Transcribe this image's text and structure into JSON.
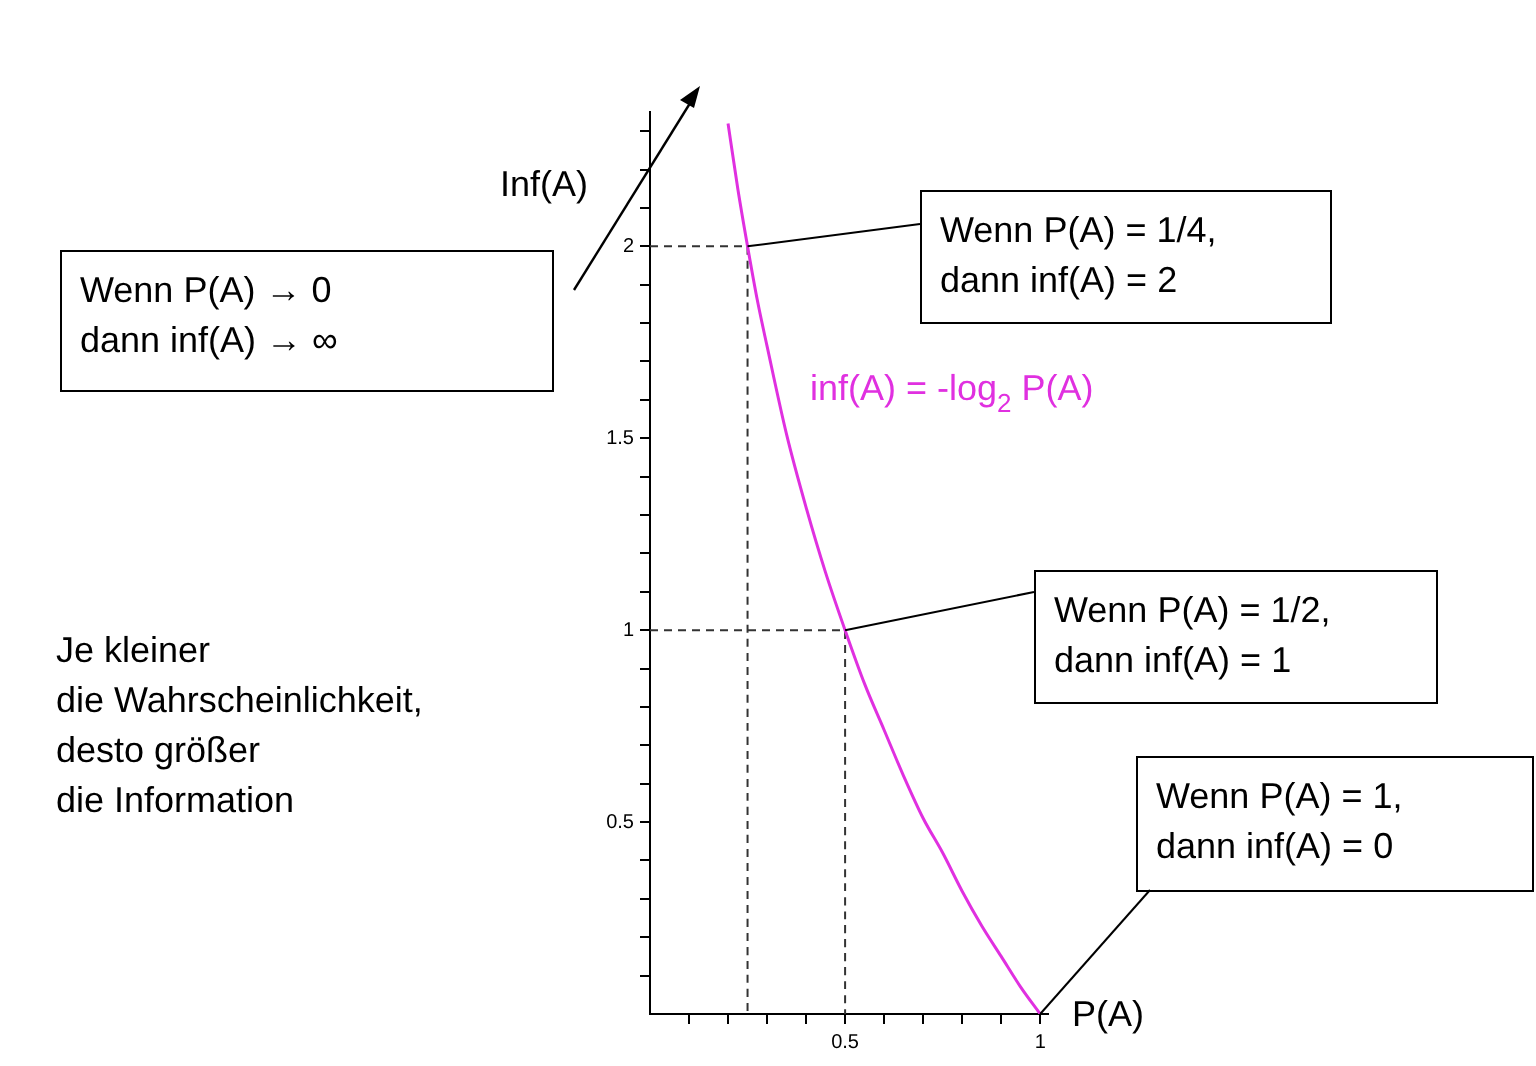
{
  "chart_data": {
    "type": "line",
    "xlabel": "P(A)",
    "ylabel": "Inf(A)",
    "xlim": [
      0,
      1.02
    ],
    "ylim": [
      0,
      2.35
    ],
    "xticks": [
      {
        "value": 0.1,
        "label": null
      },
      {
        "value": 0.2,
        "label": null
      },
      {
        "value": 0.3,
        "label": null
      },
      {
        "value": 0.4,
        "label": null
      },
      0.5,
      {
        "value": 0.6,
        "label": null
      },
      {
        "value": 0.7,
        "label": null
      },
      {
        "value": 0.8,
        "label": null
      },
      {
        "value": 0.9,
        "label": null
      },
      1
    ],
    "yticks": [
      {
        "value": 0.1,
        "label": null
      },
      {
        "value": 0.2,
        "label": null
      },
      {
        "value": 0.3,
        "label": null
      },
      {
        "value": 0.4,
        "label": null
      },
      0.5,
      {
        "value": 0.6,
        "label": null
      },
      {
        "value": 0.7,
        "label": null
      },
      {
        "value": 0.8,
        "label": null
      },
      {
        "value": 0.9,
        "label": null
      },
      1,
      {
        "value": 1.1,
        "label": null
      },
      {
        "value": 1.2,
        "label": null
      },
      {
        "value": 1.3,
        "label": null
      },
      {
        "value": 1.4,
        "label": null
      },
      1.5,
      {
        "value": 1.6,
        "label": null
      },
      {
        "value": 1.7,
        "label": null
      },
      {
        "value": 1.8,
        "label": null
      },
      {
        "value": 1.9,
        "label": null
      },
      2,
      {
        "value": 2.1,
        "label": null
      },
      {
        "value": 2.2,
        "label": null
      },
      {
        "value": 2.3,
        "label": null
      }
    ],
    "grid": false,
    "legend": false,
    "marker": "none",
    "line_style": "solid",
    "series": [
      {
        "name": "inf(A) = -log$_{2}$ P(A)",
        "color": "#e030e0",
        "x": [
          0.2,
          0.225,
          0.25,
          0.275,
          0.3,
          0.35,
          0.4,
          0.45,
          0.5,
          0.55,
          0.6,
          0.65,
          0.7,
          0.75,
          0.8,
          0.85,
          0.9,
          0.95,
          1
        ],
        "values": [
          2.32,
          2.15,
          2,
          1.86,
          1.74,
          1.51,
          1.32,
          1.15,
          1,
          0.86,
          0.74,
          0.62,
          0.51,
          0.42,
          0.32,
          0.23,
          0.15,
          0.07,
          0
        ]
      },
      {
        "color": "#333333",
        "line_style": "dashed",
        "x": [
          0,
          0.25,
          0.25
        ],
        "values": [
          2,
          2,
          0
        ]
      },
      {
        "color": "#333333",
        "line_style": "dashed",
        "x": [
          0,
          0.5,
          0.5
        ],
        "values": [
          1,
          1,
          0
        ]
      }
    ],
    "annotations": [
      {
        "text": "Wenn P(A) = 1/4,\ndann inf(A) = 2",
        "x": 0.25,
        "y": 2
      },
      {
        "text": "Wenn P(A) = 1/2,\ndann inf(A) = 1",
        "x": 0.5,
        "y": 1
      },
      {
        "text": "Wenn P(A) = 1,\ndann inf(A) = 0",
        "x": 1,
        "y": 0
      },
      "Wenn P(A) → 0\ndann inf(A) → ∞",
      "Je kleiner\ndie Wahrscheinlichkeit,\ndesto größer\ndie Information"
    ]
  }
}
